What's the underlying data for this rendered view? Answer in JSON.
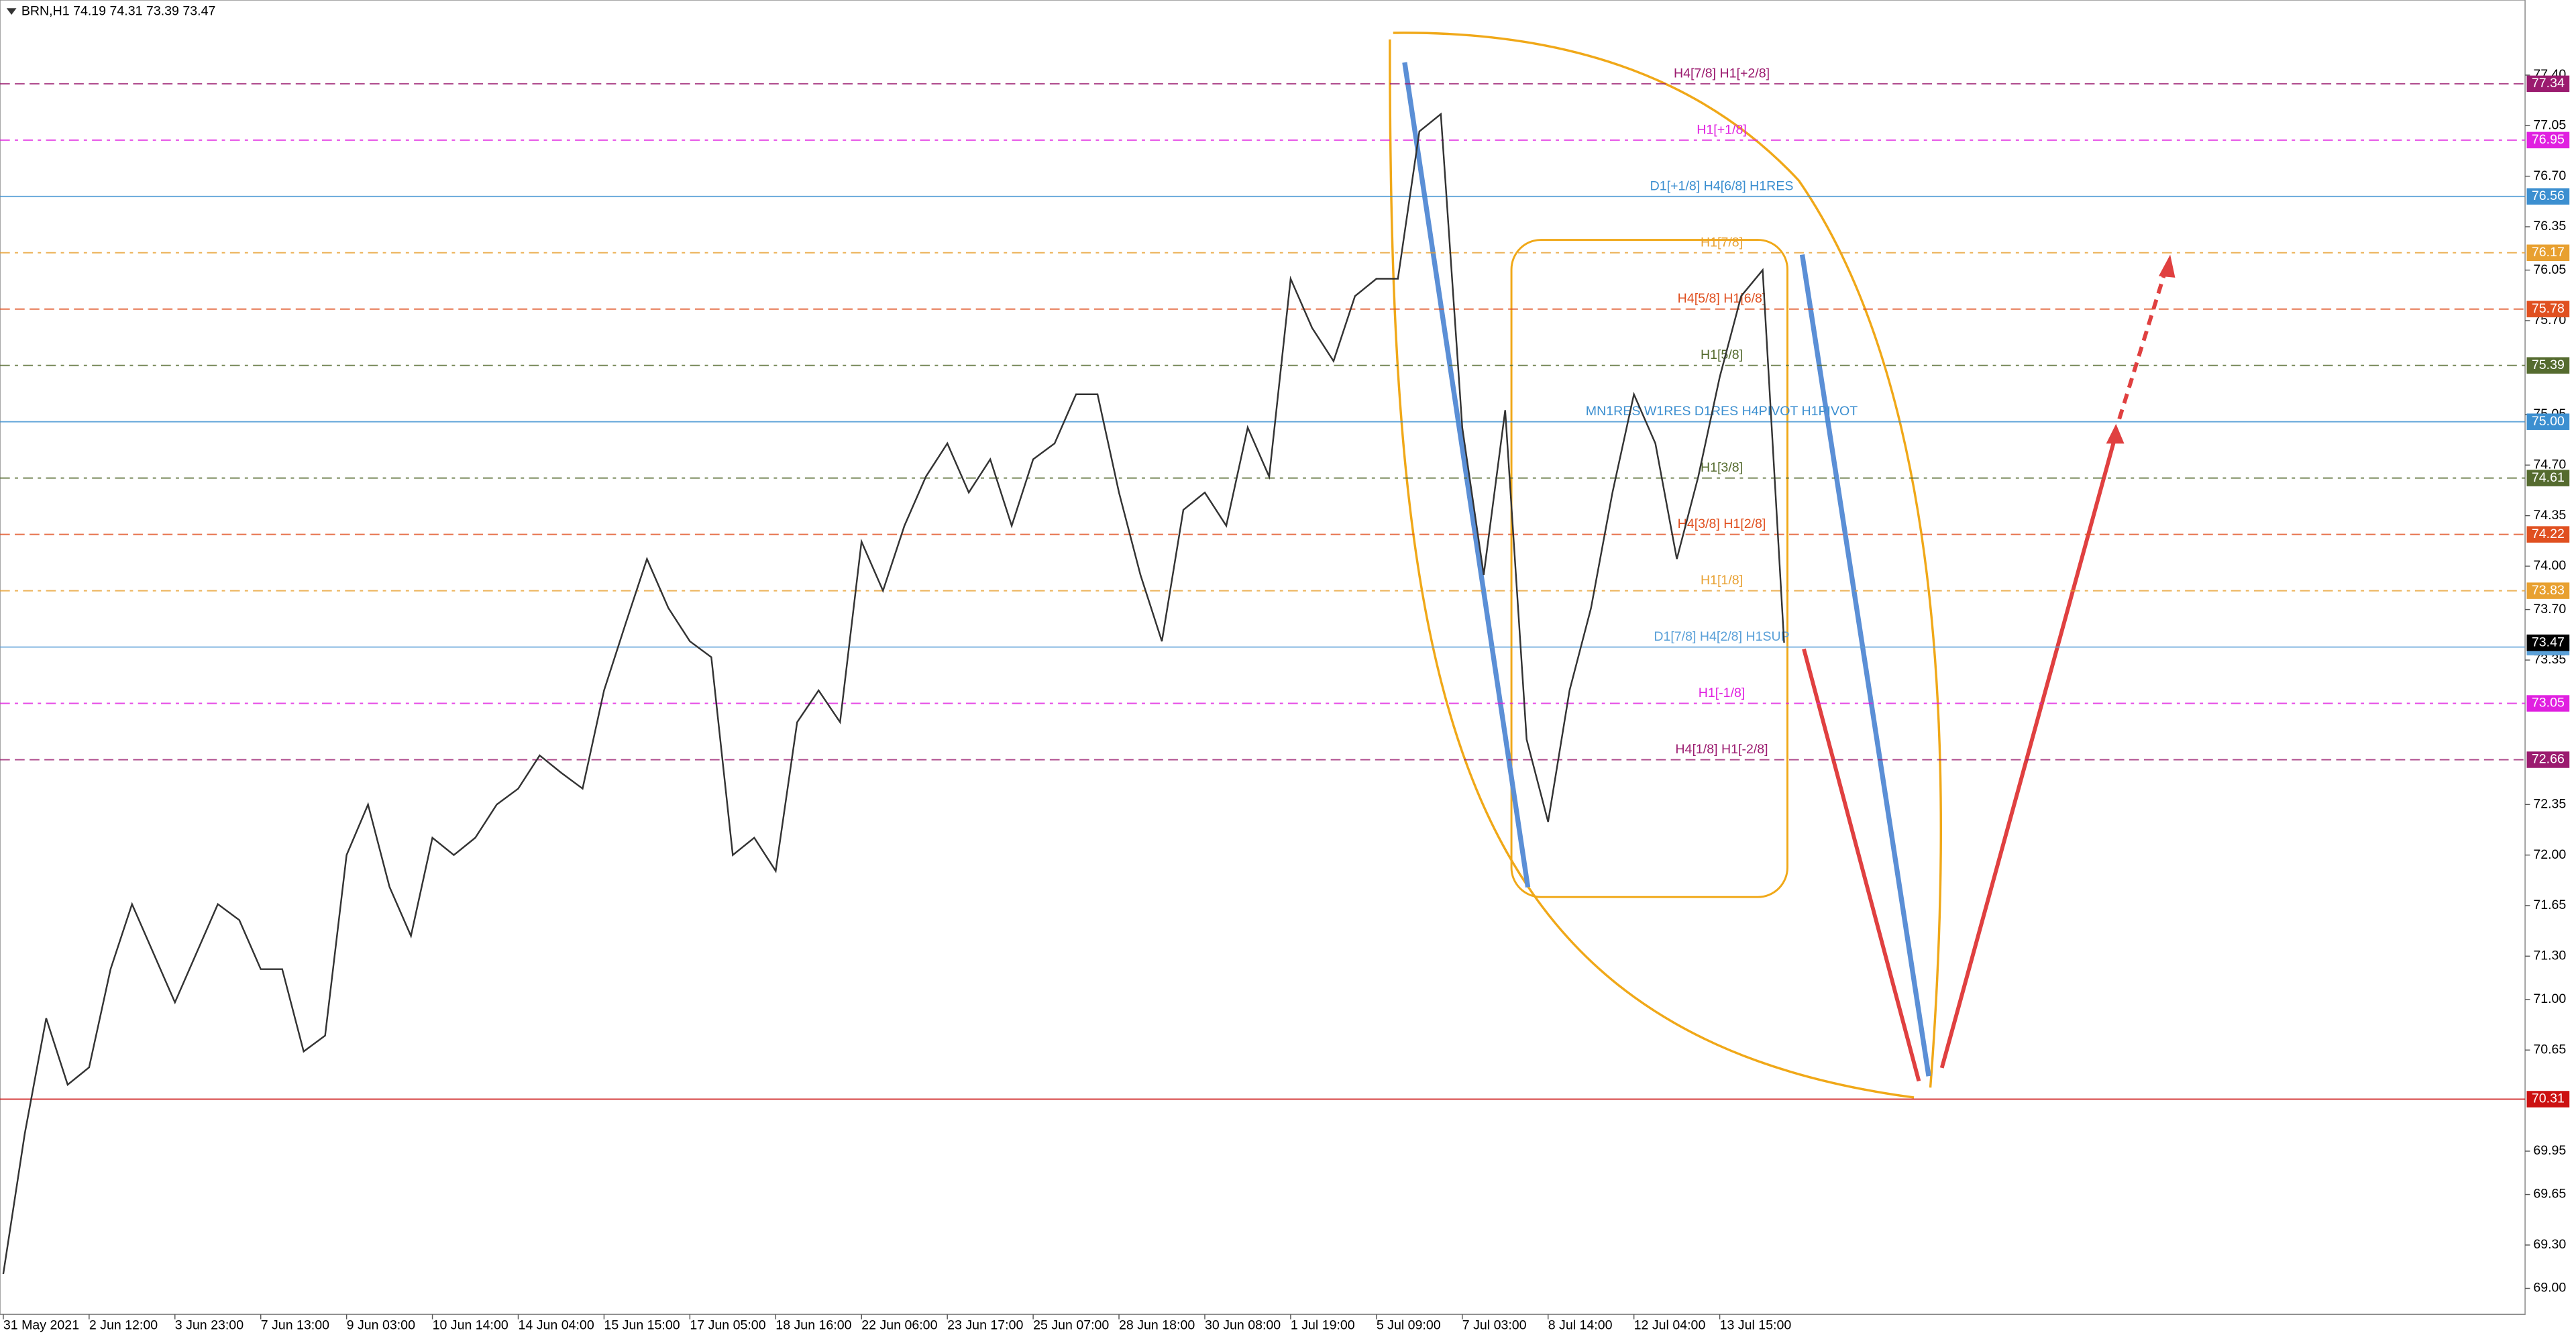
{
  "chart_data": {
    "type": "line",
    "title": "BRN,H1  74.19 74.31 73.39 73.47",
    "categories": [
      "31 May 2021",
      null,
      null,
      null,
      "2 Jun 12:00",
      null,
      null,
      null,
      "3 Jun 23:00",
      null,
      null,
      null,
      "7 Jun 13:00",
      null,
      null,
      null,
      "9 Jun 03:00",
      null,
      null,
      null,
      "10 Jun 14:00",
      null,
      null,
      null,
      "14 Jun 04:00",
      null,
      null,
      null,
      "15 Jun 15:00",
      null,
      null,
      null,
      "17 Jun 05:00",
      null,
      null,
      null,
      "18 Jun 16:00",
      null,
      null,
      null,
      "22 Jun 06:00",
      null,
      null,
      null,
      "23 Jun 17:00",
      null,
      null,
      null,
      "25 Jun 07:00",
      null,
      null,
      null,
      "28 Jun 18:00",
      null,
      null,
      null,
      "30 Jun 08:00",
      null,
      null,
      null,
      "1 Jul 19:00",
      null,
      null,
      null,
      "5 Jul 09:00",
      null,
      null,
      null,
      "7 Jul 03:00",
      null,
      null,
      null,
      "8 Jul 14:00",
      null,
      null,
      null,
      "12 Jul 04:00",
      null,
      null,
      null,
      "13 Jul 15:00",
      null,
      null,
      null
    ],
    "series": [
      {
        "name": "BRN,H1",
        "color": "#333333",
        "values": [
          69.1,
          70.07,
          70.87,
          70.41,
          70.53,
          71.21,
          71.66,
          71.32,
          70.98,
          71.32,
          71.66,
          71.55,
          71.21,
          71.21,
          70.64,
          70.75,
          72.0,
          72.35,
          71.78,
          71.44,
          72.12,
          72.0,
          72.12,
          72.35,
          72.46,
          72.69,
          72.57,
          72.46,
          73.14,
          73.6,
          74.05,
          73.71,
          73.48,
          73.37,
          72.0,
          72.12,
          71.89,
          72.92,
          73.14,
          72.92,
          74.17,
          73.83,
          74.28,
          74.62,
          74.85,
          74.51,
          74.74,
          74.28,
          74.74,
          74.85,
          75.19,
          75.19,
          74.51,
          73.94,
          73.48,
          74.39,
          74.51,
          74.28,
          74.96,
          74.62,
          75.99,
          75.65,
          75.42,
          75.87,
          75.99,
          75.99,
          77.01,
          77.13,
          74.96,
          73.94,
          75.08,
          72.8,
          72.23,
          73.14,
          73.71,
          74.51,
          75.19,
          74.85,
          74.05,
          74.62,
          75.31,
          75.87,
          76.05,
          73.47
        ]
      }
    ],
    "ylim": [
      68.82,
      77.92
    ],
    "yticks": [
      {
        "value": 77.4,
        "label": "77.40"
      },
      {
        "value": 77.05,
        "label": "77.05"
      },
      {
        "value": 76.7,
        "label": "76.70"
      },
      {
        "value": 76.35,
        "label": "76.35"
      },
      {
        "value": 76.05,
        "label": "76.05"
      },
      {
        "value": 75.7,
        "label": "75.70"
      },
      {
        "value": 75.05,
        "label": "75.05"
      },
      {
        "value": 74.7,
        "label": "74.70"
      },
      {
        "value": 74.35,
        "label": "74.35"
      },
      {
        "value": 74,
        "label": "74.00"
      },
      {
        "value": 73.7,
        "label": "73.70"
      },
      {
        "value": 73.35,
        "label": "73.35"
      },
      {
        "value": 72.35,
        "label": "72.35"
      },
      {
        "value": 72,
        "label": "72.00"
      },
      {
        "value": 71.65,
        "label": "71.65"
      },
      {
        "value": 71.3,
        "label": "71.30"
      },
      {
        "value": 71,
        "label": "71.00"
      },
      {
        "value": 70.65,
        "label": "70.65"
      },
      {
        "value": 69.95,
        "label": "69.95"
      },
      {
        "value": 69.65,
        "label": "69.65"
      },
      {
        "value": 69.3,
        "label": "69.30"
      },
      {
        "value": 69,
        "label": "69.00"
      }
    ],
    "levels": [
      {
        "text": "H4[7/8] H1[+2/8]",
        "value": 77.34,
        "color": "#9b1b6f",
        "dash": "6 3"
      },
      {
        "text": "H1[+1/8]",
        "value": 76.95,
        "color": "#e020e0",
        "dash": "6 3 2 3"
      },
      {
        "text": "D1[+1/8] H4[6/8] H1RES",
        "value": 76.56,
        "color": "#3c8fd0",
        "dash": "none"
      },
      {
        "text": "H1[7/8]",
        "value": 76.17,
        "color": "#e8a030",
        "dash": "6 3 2 3"
      },
      {
        "text": "H4[5/8] H1[6/8]",
        "value": 75.78,
        "color": "#e05020",
        "dash": "6 3"
      },
      {
        "text": "H1[5/8]",
        "value": 75.39,
        "color": "#556b2f",
        "dash": "6 3 2 3"
      },
      {
        "text": "MN1RES W1RES D1RES H4PIVOT H1PIVOT",
        "value": 75,
        "value_label": "75.00",
        "color": "#3c8fd0",
        "dash": "none"
      },
      {
        "text": "H1[3/8]",
        "value": 74.61,
        "color": "#556b2f",
        "dash": "6 3 2 3"
      },
      {
        "text": "H4[3/8] H1[2/8]",
        "value": 74.22,
        "color": "#e05020",
        "dash": "6 3"
      },
      {
        "text": "H1[1/8]",
        "value": 73.83,
        "color": "#e8a030",
        "dash": "6 3 2 3"
      },
      {
        "text": "D1[7/8] H4[2/8] H1SUP",
        "value": 73.44,
        "color": "#5aa0d8",
        "dash": "none"
      },
      {
        "text": "H1[-1/8]",
        "value": 73.05,
        "color": "#e020e0",
        "dash": "6 3 2 3"
      },
      {
        "text": "H4[1/8] H1[-2/8]",
        "value": 72.66,
        "color": "#9b1b6f",
        "dash": "6 3"
      },
      {
        "value": 70.31,
        "color": "#cc1111",
        "dash": "none"
      }
    ]
  }
}
